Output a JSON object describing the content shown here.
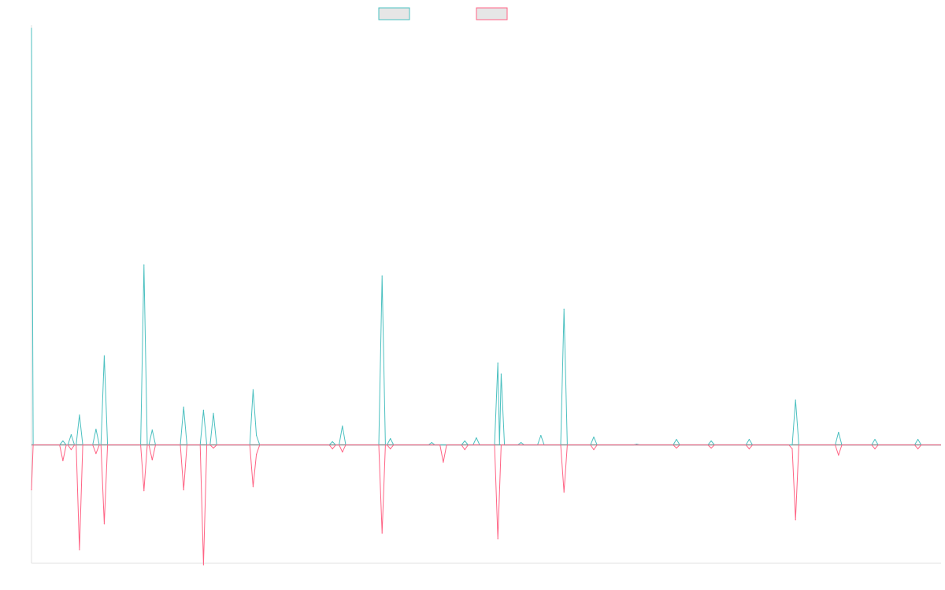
{
  "chart_data": {
    "type": "line",
    "title": "",
    "xlabel": "",
    "ylabel": "",
    "legend": {
      "position": "top-center",
      "show_labels": false
    },
    "grid": false,
    "ylim": [
      -150,
      528
    ],
    "colors": {
      "series_0": "#4bc0c0",
      "series_1": "#ff6384",
      "zero_line": "#8a8a8a",
      "axis": "#e0e0e0",
      "legend_fill": "#e6e6e6"
    },
    "series": [
      {
        "points": [
          [
            0,
            528
          ],
          [
            0.2,
            0
          ],
          [
            3.4,
            0
          ],
          [
            3.8,
            5
          ],
          [
            4.2,
            0
          ],
          [
            4.4,
            0
          ],
          [
            4.8,
            13
          ],
          [
            5.2,
            0
          ],
          [
            5.4,
            0
          ],
          [
            5.8,
            38
          ],
          [
            6.2,
            0
          ],
          [
            7.4,
            0
          ],
          [
            7.8,
            20
          ],
          [
            8.2,
            0
          ],
          [
            8.4,
            0
          ],
          [
            8.8,
            113
          ],
          [
            9.2,
            0
          ],
          [
            9.4,
            0
          ],
          [
            9.8,
            0
          ],
          [
            10.2,
            0
          ],
          [
            13.2,
            0
          ],
          [
            13.6,
            228
          ],
          [
            14.0,
            0
          ],
          [
            14.2,
            0
          ],
          [
            14.6,
            19
          ],
          [
            15.0,
            0
          ],
          [
            15.4,
            0
          ],
          [
            15.8,
            0
          ],
          [
            16.2,
            0
          ],
          [
            18.0,
            0
          ],
          [
            18.4,
            48
          ],
          [
            18.8,
            0
          ],
          [
            20.4,
            0
          ],
          [
            20.8,
            44
          ],
          [
            21.2,
            0
          ],
          [
            21.6,
            0
          ],
          [
            22.0,
            40
          ],
          [
            22.4,
            0
          ],
          [
            22.6,
            0
          ],
          [
            23.0,
            0
          ],
          [
            23.4,
            0
          ],
          [
            24.8,
            0
          ],
          [
            25.2,
            0
          ],
          [
            25.6,
            0
          ],
          [
            26.4,
            0
          ],
          [
            26.8,
            70
          ],
          [
            27.2,
            12
          ],
          [
            27.6,
            0
          ],
          [
            36.0,
            0
          ],
          [
            36.4,
            4
          ],
          [
            36.8,
            0
          ],
          [
            37.2,
            0
          ],
          [
            37.6,
            24
          ],
          [
            38.0,
            0
          ],
          [
            42.0,
            0
          ],
          [
            42.4,
            214
          ],
          [
            42.8,
            0
          ],
          [
            43.0,
            0
          ],
          [
            43.4,
            8
          ],
          [
            43.8,
            0
          ],
          [
            48.0,
            0
          ],
          [
            48.4,
            3
          ],
          [
            48.8,
            0
          ],
          [
            52.0,
            0
          ],
          [
            52.4,
            5
          ],
          [
            52.8,
            0
          ],
          [
            53.4,
            0
          ],
          [
            53.8,
            9
          ],
          [
            54.2,
            0
          ],
          [
            56.0,
            0
          ],
          [
            56.4,
            104
          ],
          [
            56.6,
            0
          ],
          [
            56.8,
            90
          ],
          [
            57.2,
            0
          ],
          [
            58.8,
            0
          ],
          [
            59.2,
            3
          ],
          [
            59.6,
            0
          ],
          [
            61.2,
            0
          ],
          [
            61.6,
            12
          ],
          [
            62.0,
            0
          ],
          [
            62.8,
            0
          ],
          [
            63.2,
            0
          ],
          [
            63.6,
            0
          ],
          [
            64.0,
            0
          ],
          [
            64.4,
            172
          ],
          [
            64.8,
            0
          ],
          [
            67.6,
            0
          ],
          [
            68.0,
            10
          ],
          [
            68.4,
            0
          ],
          [
            68.8,
            0
          ],
          [
            69.2,
            0
          ],
          [
            72.8,
            0
          ],
          [
            73.2,
            1
          ],
          [
            73.6,
            0
          ],
          [
            77.6,
            0
          ],
          [
            78.0,
            7
          ],
          [
            78.4,
            0
          ],
          [
            81.8,
            0
          ],
          [
            82.2,
            5
          ],
          [
            82.6,
            0
          ],
          [
            86.4,
            0
          ],
          [
            86.8,
            7
          ],
          [
            87.2,
            0
          ],
          [
            90.0,
            0
          ],
          [
            90.4,
            0
          ],
          [
            90.8,
            0
          ],
          [
            92.0,
            0
          ],
          [
            92.4,
            57
          ],
          [
            92.8,
            0
          ],
          [
            97.2,
            0
          ],
          [
            97.6,
            16
          ],
          [
            98.0,
            0
          ],
          [
            101.6,
            0
          ],
          [
            102.0,
            7
          ],
          [
            102.4,
            0
          ],
          [
            106.8,
            0
          ],
          [
            107.2,
            7
          ],
          [
            107.6,
            0
          ],
          [
            110,
            0
          ]
        ]
      },
      {
        "points": [
          [
            0,
            -57
          ],
          [
            0.2,
            0
          ],
          [
            3.4,
            0
          ],
          [
            3.8,
            -20
          ],
          [
            4.2,
            0
          ],
          [
            4.4,
            0
          ],
          [
            4.8,
            -6
          ],
          [
            5.2,
            0
          ],
          [
            5.4,
            0
          ],
          [
            5.8,
            -133
          ],
          [
            6.2,
            0
          ],
          [
            7.4,
            0
          ],
          [
            7.8,
            -11
          ],
          [
            8.2,
            0
          ],
          [
            8.4,
            0
          ],
          [
            8.8,
            -100
          ],
          [
            9.2,
            0
          ],
          [
            9.4,
            0
          ],
          [
            9.8,
            0
          ],
          [
            10.2,
            0
          ],
          [
            13.2,
            0
          ],
          [
            13.6,
            -58
          ],
          [
            14.0,
            0
          ],
          [
            14.2,
            0
          ],
          [
            14.6,
            -19
          ],
          [
            15.0,
            0
          ],
          [
            15.4,
            0
          ],
          [
            15.8,
            0
          ],
          [
            16.2,
            0
          ],
          [
            18.0,
            0
          ],
          [
            18.4,
            -57
          ],
          [
            18.8,
            0
          ],
          [
            20.4,
            0
          ],
          [
            20.8,
            -152
          ],
          [
            21.2,
            0
          ],
          [
            21.6,
            0
          ],
          [
            22.0,
            -4
          ],
          [
            22.4,
            0
          ],
          [
            22.6,
            0
          ],
          [
            23.0,
            0
          ],
          [
            23.4,
            0
          ],
          [
            24.8,
            0
          ],
          [
            25.2,
            0
          ],
          [
            25.6,
            0
          ],
          [
            26.4,
            0
          ],
          [
            26.8,
            -53
          ],
          [
            27.2,
            -12
          ],
          [
            27.6,
            0
          ],
          [
            36.0,
            0
          ],
          [
            36.4,
            -5
          ],
          [
            36.8,
            0
          ],
          [
            37.2,
            0
          ],
          [
            37.6,
            -9
          ],
          [
            38.0,
            0
          ],
          [
            42.0,
            0
          ],
          [
            42.4,
            -112
          ],
          [
            42.8,
            0
          ],
          [
            43.0,
            0
          ],
          [
            43.4,
            -5
          ],
          [
            43.8,
            0
          ],
          [
            48.0,
            0
          ],
          [
            48.4,
            0
          ],
          [
            48.8,
            0
          ],
          [
            49.4,
            0
          ],
          [
            49.8,
            -22
          ],
          [
            50.2,
            0
          ],
          [
            52.0,
            0
          ],
          [
            52.4,
            -6
          ],
          [
            52.8,
            0
          ],
          [
            53.4,
            0
          ],
          [
            53.8,
            0
          ],
          [
            54.2,
            0
          ],
          [
            56.0,
            0
          ],
          [
            56.4,
            -119
          ],
          [
            56.8,
            0
          ],
          [
            58.8,
            0
          ],
          [
            59.2,
            0
          ],
          [
            59.6,
            0
          ],
          [
            61.2,
            0
          ],
          [
            61.6,
            0
          ],
          [
            62.0,
            0
          ],
          [
            62.8,
            0
          ],
          [
            63.2,
            0
          ],
          [
            63.6,
            0
          ],
          [
            64.0,
            0
          ],
          [
            64.4,
            -60
          ],
          [
            64.8,
            0
          ],
          [
            67.6,
            0
          ],
          [
            68.0,
            -6
          ],
          [
            68.4,
            0
          ],
          [
            68.8,
            0
          ],
          [
            69.2,
            0
          ],
          [
            72.8,
            0
          ],
          [
            73.2,
            0
          ],
          [
            73.6,
            0
          ],
          [
            77.6,
            0
          ],
          [
            78.0,
            -4
          ],
          [
            78.4,
            0
          ],
          [
            81.8,
            0
          ],
          [
            82.2,
            -4
          ],
          [
            82.6,
            0
          ],
          [
            86.4,
            0
          ],
          [
            86.8,
            -5
          ],
          [
            87.2,
            0
          ],
          [
            90.0,
            0
          ],
          [
            90.4,
            0
          ],
          [
            90.8,
            0
          ],
          [
            91.6,
            0
          ],
          [
            92.0,
            -5
          ],
          [
            92.4,
            -95
          ],
          [
            92.8,
            0
          ],
          [
            97.2,
            0
          ],
          [
            97.6,
            -13
          ],
          [
            98.0,
            0
          ],
          [
            101.6,
            0
          ],
          [
            102.0,
            -5
          ],
          [
            102.4,
            0
          ],
          [
            106.8,
            0
          ],
          [
            107.2,
            -5
          ],
          [
            107.6,
            0
          ],
          [
            110,
            0
          ]
        ]
      }
    ]
  }
}
